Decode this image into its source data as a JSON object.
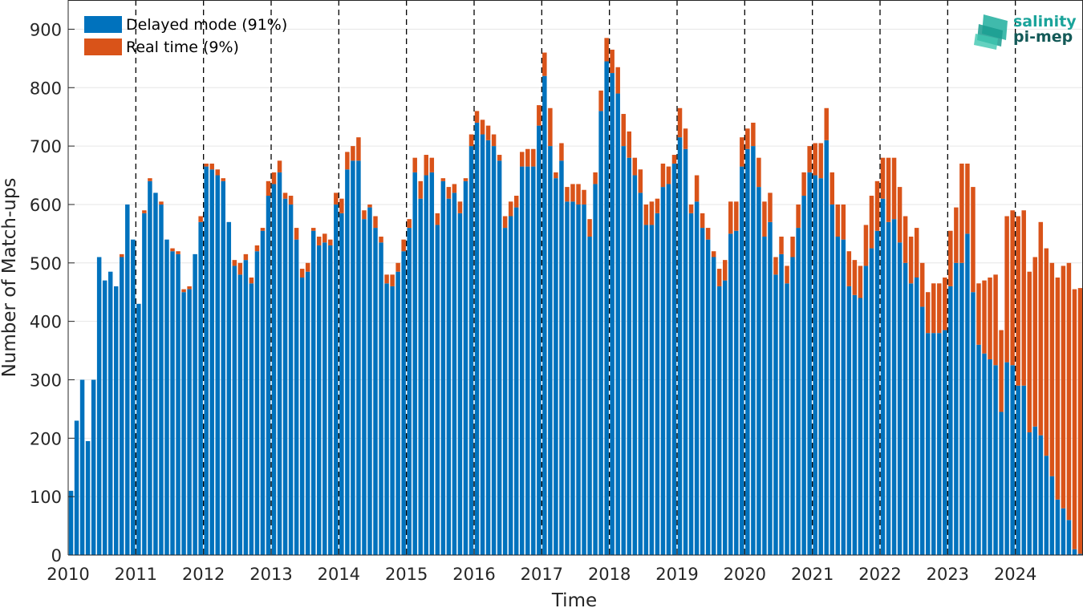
{
  "colors": {
    "delayed": "#0072BD",
    "realtime": "#D95319",
    "logo_top": "#1aa39a",
    "logo_bottom": "#145a58"
  },
  "logo": {
    "line1": "salinity",
    "line2": "pi-mep"
  },
  "chart_data": {
    "type": "bar",
    "stacked": true,
    "xlabel": "Time",
    "ylabel": "Number of Match-ups",
    "ylim": [
      0,
      950
    ],
    "yticks": [
      0,
      100,
      200,
      300,
      400,
      500,
      600,
      700,
      800,
      900
    ],
    "year_labels": [
      "2010",
      "2011",
      "2012",
      "2013",
      "2014",
      "2015",
      "2016",
      "2017",
      "2018",
      "2019",
      "2020",
      "2021",
      "2022",
      "2023",
      "2024"
    ],
    "year_dividers": [
      "2011",
      "2012",
      "2013",
      "2014",
      "2015",
      "2016",
      "2017",
      "2018",
      "2019",
      "2020",
      "2021",
      "2022",
      "2023",
      "2024"
    ],
    "grid": true,
    "legend_position": "top-left",
    "series": [
      {
        "name": "Delayed mode (91%)",
        "values": [
          110,
          230,
          300,
          195,
          300,
          510,
          470,
          485,
          460,
          510,
          600,
          540,
          430,
          585,
          640,
          620,
          600,
          540,
          520,
          515,
          450,
          455,
          515,
          570,
          665,
          660,
          650,
          640,
          570,
          495,
          480,
          505,
          465,
          520,
          555,
          615,
          635,
          655,
          610,
          600,
          540,
          475,
          485,
          555,
          530,
          535,
          530,
          600,
          585,
          660,
          675,
          675,
          575,
          595,
          560,
          535,
          465,
          460,
          485,
          520,
          560,
          655,
          610,
          650,
          655,
          565,
          640,
          610,
          620,
          585,
          640,
          700,
          740,
          720,
          710,
          700,
          675,
          560,
          580,
          595,
          665,
          665,
          665,
          735,
          820,
          700,
          645,
          675,
          605,
          605,
          600,
          600,
          545,
          635,
          760,
          845,
          825,
          790,
          700,
          680,
          650,
          620,
          565,
          565,
          585,
          630,
          635,
          670,
          715,
          695,
          585,
          605,
          560,
          540,
          510,
          460,
          470,
          550,
          555,
          665,
          695,
          700,
          630,
          545,
          570,
          480,
          515,
          465,
          510,
          560,
          615,
          655,
          650,
          645,
          710,
          600,
          545,
          540,
          460,
          445,
          440,
          495,
          525,
          555,
          610,
          570,
          575,
          535,
          500,
          465,
          475,
          425,
          380,
          380,
          380,
          385,
          460,
          500,
          500,
          550,
          450,
          360,
          345,
          335,
          325,
          245,
          330,
          325,
          290,
          290,
          210,
          220,
          205,
          170,
          135,
          95,
          80,
          60,
          10,
          2
        ]
      },
      {
        "name": "Real time (9%)",
        "values": [
          0,
          0,
          0,
          0,
          0,
          0,
          0,
          0,
          0,
          5,
          0,
          0,
          0,
          5,
          5,
          0,
          5,
          0,
          5,
          5,
          5,
          5,
          0,
          10,
          5,
          10,
          10,
          5,
          0,
          10,
          20,
          10,
          10,
          10,
          5,
          25,
          20,
          20,
          10,
          15,
          20,
          15,
          15,
          5,
          15,
          15,
          10,
          20,
          25,
          30,
          25,
          40,
          15,
          5,
          20,
          10,
          15,
          20,
          15,
          20,
          15,
          25,
          30,
          35,
          25,
          20,
          5,
          20,
          15,
          20,
          5,
          20,
          20,
          25,
          25,
          20,
          10,
          20,
          25,
          20,
          25,
          30,
          30,
          35,
          40,
          65,
          10,
          30,
          25,
          30,
          35,
          25,
          30,
          20,
          35,
          40,
          40,
          45,
          55,
          45,
          30,
          40,
          35,
          40,
          25,
          40,
          30,
          15,
          50,
          35,
          15,
          45,
          25,
          20,
          10,
          30,
          35,
          55,
          50,
          50,
          35,
          40,
          50,
          60,
          50,
          30,
          30,
          30,
          35,
          40,
          40,
          45,
          55,
          60,
          55,
          55,
          55,
          60,
          60,
          60,
          55,
          70,
          90,
          85,
          70,
          110,
          105,
          95,
          80,
          80,
          85,
          75,
          70,
          85,
          85,
          90,
          95,
          95,
          170,
          120,
          180,
          105,
          125,
          140,
          155,
          140,
          250,
          265,
          290,
          300,
          275,
          290,
          365,
          355,
          365,
          380,
          415,
          440,
          445,
          455
        ]
      }
    ]
  }
}
